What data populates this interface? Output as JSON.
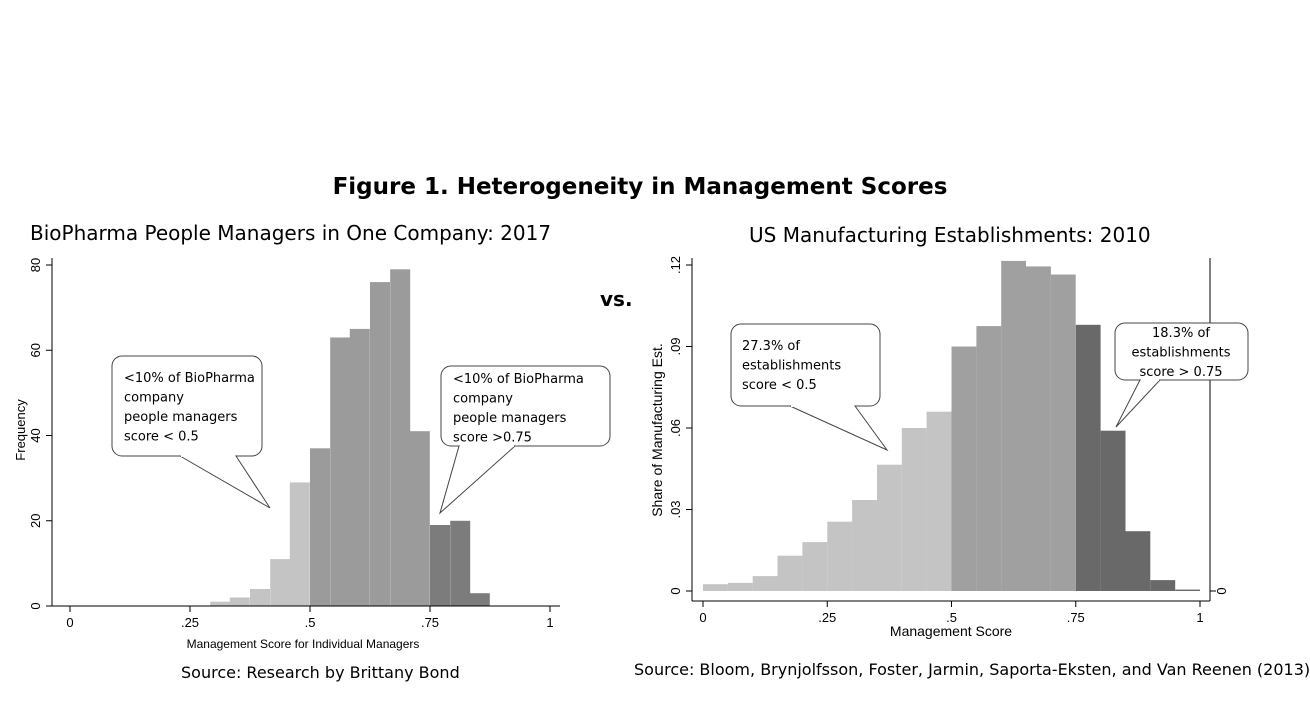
{
  "figure_title": "Figure 1. Heterogeneity in Management Scores",
  "vs_label": "vs.",
  "chart_data": [
    {
      "type": "bar",
      "title": "BioPharma People Managers in One Company: 2017",
      "xlabel": "Management Score for Individual Managers",
      "ylabel": "Frequency",
      "xlim": [
        -0.02,
        1.02
      ],
      "ylim": [
        0,
        82
      ],
      "xticks": [
        0,
        0.25,
        0.5,
        0.75,
        1
      ],
      "xtick_labels": [
        "0",
        ".25",
        ".5",
        ".75",
        "1"
      ],
      "yticks": [
        0,
        20,
        40,
        60,
        80
      ],
      "ytick_labels": [
        "0",
        "20",
        "40",
        "60",
        "80"
      ],
      "bin_width": 0.0417,
      "bins": [
        {
          "x": 0.292,
          "value": 1,
          "group": "low"
        },
        {
          "x": 0.333,
          "value": 2,
          "group": "low"
        },
        {
          "x": 0.375,
          "value": 4,
          "group": "low"
        },
        {
          "x": 0.417,
          "value": 11,
          "group": "low"
        },
        {
          "x": 0.458,
          "value": 29,
          "group": "low"
        },
        {
          "x": 0.5,
          "value": 37,
          "group": "mid"
        },
        {
          "x": 0.542,
          "value": 63,
          "group": "mid"
        },
        {
          "x": 0.583,
          "value": 65,
          "group": "mid"
        },
        {
          "x": 0.625,
          "value": 76,
          "group": "mid"
        },
        {
          "x": 0.667,
          "value": 79,
          "group": "mid"
        },
        {
          "x": 0.708,
          "value": 41,
          "group": "mid"
        },
        {
          "x": 0.75,
          "value": 19,
          "group": "high"
        },
        {
          "x": 0.792,
          "value": 20,
          "group": "high"
        },
        {
          "x": 0.833,
          "value": 3,
          "group": "high"
        }
      ],
      "colors": {
        "low": "#c4c4c4",
        "mid": "#9b9b9b",
        "high": "#7c7c7c"
      },
      "annotations": [
        {
          "lines": [
            "<10% of BioPharma",
            "company",
            "people managers",
            "score < 0.5"
          ]
        },
        {
          "lines": [
            "<10% of BioPharma",
            "company",
            "people managers",
            "score >0.75"
          ]
        }
      ],
      "source": "Source: Research by Brittany Bond"
    },
    {
      "type": "bar",
      "title": "US Manufacturing Establishments: 2010",
      "xlabel": "Management Score",
      "ylabel": "Share of Manufacturing Est.",
      "xlim": [
        -0.02,
        1.02
      ],
      "ylim": [
        -0.001,
        0.122
      ],
      "xticks": [
        0,
        0.25,
        0.5,
        0.75,
        1
      ],
      "xtick_labels": [
        "0",
        ".25",
        ".5",
        ".75",
        "1"
      ],
      "yticks": [
        0,
        0.03,
        0.06,
        0.09,
        0.12
      ],
      "ytick_labels": [
        "0",
        ".03",
        ".06",
        ".09",
        ".12"
      ],
      "right_axis_label": "0",
      "bin_width": 0.05,
      "bins": [
        {
          "x": 0.0,
          "value": 0.0025,
          "group": "low"
        },
        {
          "x": 0.05,
          "value": 0.003,
          "group": "low"
        },
        {
          "x": 0.1,
          "value": 0.0055,
          "group": "low"
        },
        {
          "x": 0.15,
          "value": 0.013,
          "group": "low"
        },
        {
          "x": 0.2,
          "value": 0.018,
          "group": "low"
        },
        {
          "x": 0.25,
          "value": 0.0255,
          "group": "low"
        },
        {
          "x": 0.3,
          "value": 0.0335,
          "group": "low"
        },
        {
          "x": 0.35,
          "value": 0.0465,
          "group": "low"
        },
        {
          "x": 0.4,
          "value": 0.06,
          "group": "low"
        },
        {
          "x": 0.45,
          "value": 0.066,
          "group": "low"
        },
        {
          "x": 0.5,
          "value": 0.09,
          "group": "mid"
        },
        {
          "x": 0.55,
          "value": 0.0975,
          "group": "mid"
        },
        {
          "x": 0.6,
          "value": 0.1215,
          "group": "mid"
        },
        {
          "x": 0.65,
          "value": 0.1195,
          "group": "mid"
        },
        {
          "x": 0.7,
          "value": 0.1165,
          "group": "mid"
        },
        {
          "x": 0.75,
          "value": 0.098,
          "group": "high"
        },
        {
          "x": 0.8,
          "value": 0.059,
          "group": "high"
        },
        {
          "x": 0.85,
          "value": 0.022,
          "group": "high"
        },
        {
          "x": 0.9,
          "value": 0.004,
          "group": "high"
        },
        {
          "x": 0.95,
          "value": 0.0005,
          "group": "high"
        }
      ],
      "colors": {
        "low": "#c4c4c4",
        "mid": "#a0a0a0",
        "high": "#696969"
      },
      "annotations": [
        {
          "lines": [
            "27.3% of",
            "establishments",
            "score < 0.5"
          ]
        },
        {
          "lines": [
            "18.3% of",
            "establishments",
            "score > 0.75"
          ]
        }
      ],
      "source": "Source: Bloom, Brynjolfsson, Foster, Jarmin, Saporta-Eksten, and Van Reenen (2013)"
    }
  ]
}
